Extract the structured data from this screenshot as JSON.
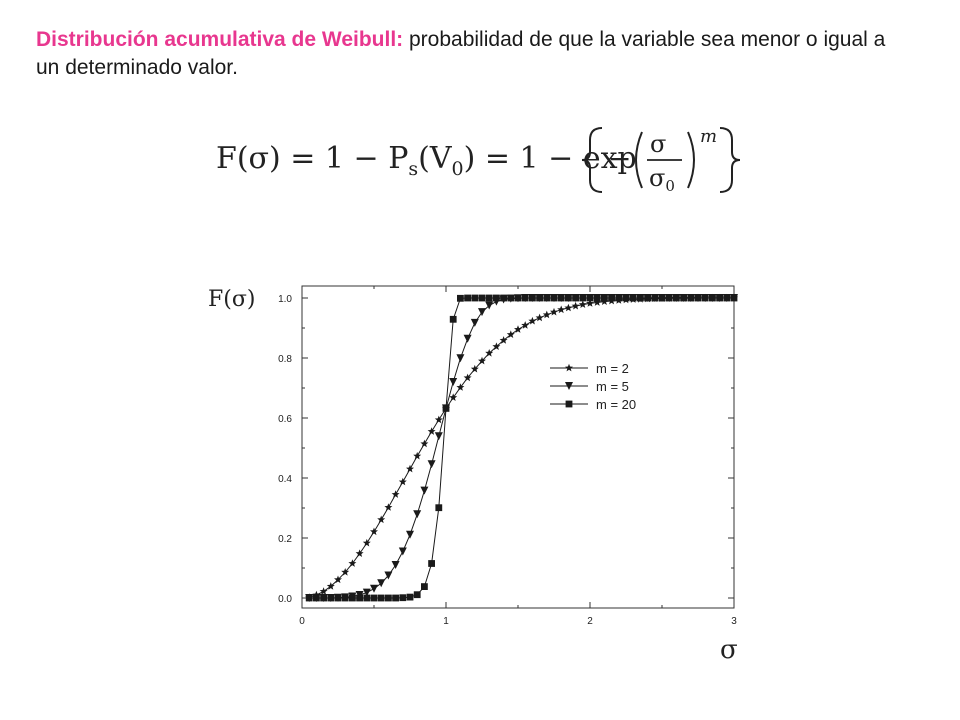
{
  "intro": {
    "highlight": "Distribución acumulativa de Weibull:",
    "rest": " probabilidad de que la variable sea menor o igual a un determinado valor."
  },
  "formula": {
    "lhs": "F(σ) = 1 − P",
    "ps_sub": "s",
    "mid": "(V",
    "v_sub": "0",
    "mid2": ") = 1 − exp",
    "frac_num": "σ",
    "frac_den": "σ",
    "den_sub": "0",
    "exponent": "m"
  },
  "colors": {
    "highlight": "#e8378f",
    "series": "#1a1a1a"
  },
  "chart_data": {
    "type": "line",
    "title": "",
    "xlabel": "σ",
    "ylabel": "F(σ)",
    "xlim": [
      0,
      3
    ],
    "ylim": [
      0,
      1
    ],
    "x_ticks": [
      0,
      1,
      2,
      3
    ],
    "y_ticks": [
      0.0,
      0.2,
      0.4,
      0.6,
      0.8,
      1.0
    ],
    "x_tick_labels": [
      "0",
      "1",
      "2",
      "3"
    ],
    "y_tick_labels": [
      "0.0",
      "0.2",
      "0.4",
      "0.6",
      "0.8",
      "1.0"
    ],
    "grid": false,
    "legend_position": "center-right",
    "x": [
      0.05,
      0.1,
      0.15,
      0.2,
      0.25,
      0.3,
      0.35,
      0.4,
      0.45,
      0.5,
      0.55,
      0.6,
      0.65,
      0.7,
      0.75,
      0.8,
      0.85,
      0.9,
      0.95,
      1.0,
      1.05,
      1.1,
      1.15,
      1.2,
      1.25,
      1.3,
      1.35,
      1.4,
      1.45,
      1.5,
      1.55,
      1.6,
      1.65,
      1.7,
      1.75,
      1.8,
      1.85,
      1.9,
      1.95,
      2.0,
      2.05,
      2.1,
      2.15,
      2.2,
      2.25,
      2.3,
      2.35,
      2.4,
      2.45,
      2.5,
      2.55,
      2.6,
      2.65,
      2.7,
      2.75,
      2.8,
      2.85,
      2.9,
      2.95,
      3.0
    ],
    "series": [
      {
        "name": "m = 2",
        "marker": "star",
        "values": [
          0.002,
          0.01,
          0.022,
          0.039,
          0.061,
          0.086,
          0.115,
          0.148,
          0.183,
          0.221,
          0.261,
          0.302,
          0.345,
          0.387,
          0.43,
          0.473,
          0.514,
          0.555,
          0.594,
          0.632,
          0.668,
          0.702,
          0.734,
          0.763,
          0.79,
          0.816,
          0.838,
          0.859,
          0.878,
          0.895,
          0.909,
          0.923,
          0.934,
          0.944,
          0.953,
          0.961,
          0.967,
          0.973,
          0.978,
          0.982,
          0.985,
          0.988,
          0.99,
          0.992,
          0.994,
          0.995,
          0.996,
          0.997,
          0.998,
          0.998,
          0.999,
          0.999,
          0.999,
          0.999,
          1.0,
          1.0,
          1.0,
          1.0,
          1.0,
          1.0
        ]
      },
      {
        "name": "m = 5",
        "marker": "triangle-down",
        "values": [
          0.0,
          0.0,
          0.0,
          0.0,
          0.001,
          0.002,
          0.005,
          0.01,
          0.018,
          0.031,
          0.049,
          0.075,
          0.11,
          0.155,
          0.211,
          0.279,
          0.358,
          0.446,
          0.539,
          0.632,
          0.72,
          0.799,
          0.864,
          0.917,
          0.953,
          0.975,
          0.988,
          0.995,
          0.998,
          0.999,
          1.0,
          1.0,
          1.0,
          1.0,
          1.0,
          1.0,
          1.0,
          1.0,
          1.0,
          1.0,
          1.0,
          1.0,
          1.0,
          1.0,
          1.0,
          1.0,
          1.0,
          1.0,
          1.0,
          1.0,
          1.0,
          1.0,
          1.0,
          1.0,
          1.0,
          1.0,
          1.0,
          1.0,
          1.0,
          1.0
        ]
      },
      {
        "name": "m = 20",
        "marker": "square",
        "values": [
          0.0,
          0.0,
          0.0,
          0.0,
          0.0,
          0.0,
          0.0,
          0.0,
          0.0,
          0.0,
          0.0,
          0.0,
          0.0,
          0.001,
          0.003,
          0.011,
          0.038,
          0.115,
          0.301,
          0.632,
          0.929,
          0.999,
          1.0,
          1.0,
          1.0,
          1.0,
          1.0,
          1.0,
          1.0,
          1.0,
          1.0,
          1.0,
          1.0,
          1.0,
          1.0,
          1.0,
          1.0,
          1.0,
          1.0,
          1.0,
          1.0,
          1.0,
          1.0,
          1.0,
          1.0,
          1.0,
          1.0,
          1.0,
          1.0,
          1.0,
          1.0,
          1.0,
          1.0,
          1.0,
          1.0,
          1.0,
          1.0,
          1.0,
          1.0,
          1.0
        ]
      }
    ]
  }
}
